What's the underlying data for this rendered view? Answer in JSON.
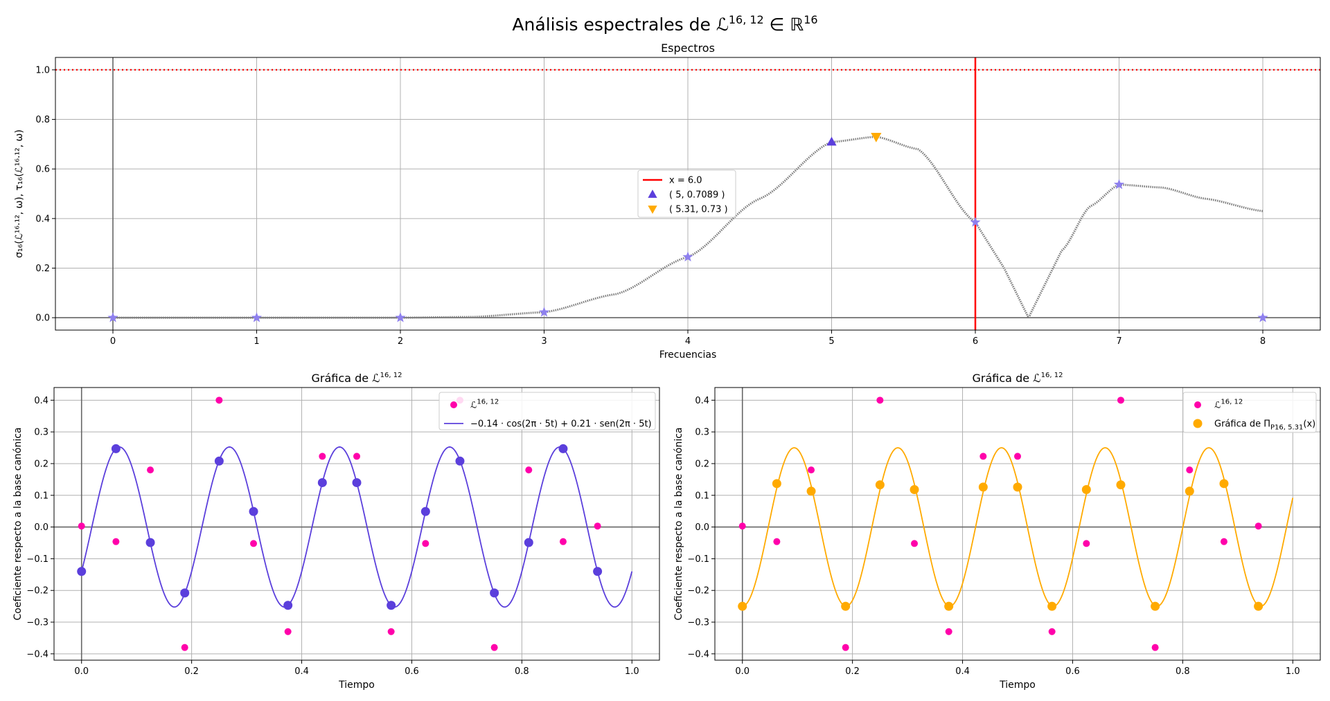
{
  "figure": {
    "title": "Análisis espectrales de ℒ",
    "title_sup": "16, 12",
    "title_mid": " ∈ ℝ",
    "title_sup2": "16"
  },
  "chart_data": [
    {
      "type": "scatter",
      "title": "Espectros",
      "xlabel": "Frecuencias",
      "ylabel": "σ₁₆(ℒ¹⁶·¹², ω), τ₁₆(ℒ¹⁶·¹², ω)",
      "xlim": [
        -0.4,
        8.4
      ],
      "ylim": [
        -0.05,
        1.05
      ],
      "xticks": [
        0,
        1,
        2,
        3,
        4,
        5,
        6,
        7,
        8
      ],
      "xtick_labels": [
        "0",
        "1",
        "2",
        "3",
        "4",
        "5",
        "6",
        "7",
        "8"
      ],
      "yticks": [
        0.0,
        0.2,
        0.4,
        0.6,
        0.8,
        1.0
      ],
      "ytick_labels": [
        "0.0",
        "0.2",
        "0.4",
        "0.6",
        "0.8",
        "1.0"
      ],
      "grid": true,
      "hline_dotted": 1.0,
      "vline_x": 6.0,
      "spectrum_curve": {
        "x": [
          0.0,
          1.0,
          2.0,
          2.5,
          3.0,
          3.5,
          4.0,
          4.5,
          5.0,
          5.31,
          5.6,
          6.0,
          6.2,
          6.37,
          6.6,
          6.8,
          7.0,
          7.3,
          7.6,
          8.0
        ],
        "y": [
          0.0,
          0.0,
          0.0,
          0.003,
          0.022,
          0.095,
          0.245,
          0.48,
          0.709,
          0.73,
          0.68,
          0.385,
          0.2,
          0.0,
          0.27,
          0.45,
          0.537,
          0.525,
          0.48,
          0.43
        ]
      },
      "star_points": {
        "x": [
          0,
          1,
          2,
          3,
          4,
          6,
          7,
          8
        ],
        "y": [
          0.0,
          0.0,
          0.0,
          0.022,
          0.245,
          0.385,
          0.537,
          0.0
        ]
      },
      "triangle_up": {
        "x": 5,
        "y": 0.7089
      },
      "triangle_down": {
        "x": 5.31,
        "y": 0.73
      },
      "legend_position": "center",
      "legend": [
        {
          "label": "x = 6.0",
          "marker": "line",
          "color": "#ff0000"
        },
        {
          "label": "( 5, 0.7089 )",
          "marker": "triangle-up",
          "color": "#5b3fdc"
        },
        {
          "label": "( 5.31, 0.73 )",
          "marker": "triangle-down",
          "color": "#ffaa00"
        }
      ]
    },
    {
      "type": "scatter",
      "title": "Gráfica de ℒ",
      "title_sup": "16, 12",
      "xlabel": "Tiempo",
      "ylabel": "Coeficiente respecto a la base canónica",
      "xlim": [
        -0.05,
        1.05
      ],
      "ylim": [
        -0.42,
        0.44
      ],
      "xticks": [
        0.0,
        0.2,
        0.4,
        0.6,
        0.8,
        1.0
      ],
      "xtick_labels": [
        "0.0",
        "0.2",
        "0.4",
        "0.6",
        "0.8",
        "1.0"
      ],
      "yticks": [
        -0.4,
        -0.3,
        -0.2,
        -0.1,
        0.0,
        0.1,
        0.2,
        0.3,
        0.4
      ],
      "ytick_labels": [
        "−0.4",
        "−0.3",
        "−0.2",
        "−0.1",
        "0.0",
        "0.1",
        "0.2",
        "0.3",
        "0.4"
      ],
      "grid": true,
      "signal_points": {
        "x": [
          0.0,
          0.0625,
          0.125,
          0.1875,
          0.25,
          0.3125,
          0.375,
          0.4375,
          0.5,
          0.5625,
          0.625,
          0.6875,
          0.75,
          0.8125,
          0.875,
          0.9375
        ],
        "y": [
          0.003,
          -0.046,
          0.18,
          -0.38,
          0.4,
          -0.052,
          -0.33,
          0.223,
          0.223,
          -0.33,
          -0.052,
          0.4,
          -0.38,
          0.18,
          -0.046,
          0.003
        ]
      },
      "fit_curve": {
        "a_cos": -0.14,
        "b_sin": 0.21,
        "freq": 5
      },
      "fit_points": {
        "x": [
          0.0,
          0.0625,
          0.125,
          0.1875,
          0.25,
          0.3125,
          0.375,
          0.4375,
          0.5,
          0.5625,
          0.625,
          0.6875,
          0.75,
          0.8125,
          0.875,
          0.9375
        ],
        "y": [
          -0.14,
          0.247,
          -0.049,
          -0.208,
          0.208,
          0.049,
          -0.247,
          0.14,
          0.14,
          -0.247,
          0.049,
          0.208,
          -0.208,
          -0.049,
          0.247,
          -0.14
        ]
      },
      "legend_position": "upper right",
      "legend": [
        {
          "label": "ℒ",
          "label_sup": "16, 12",
          "marker": "dot",
          "color": "#ff00aa"
        },
        {
          "label": "−0.14 · cos(2π · 5t) + 0.21 · sen(2π · 5t)",
          "marker": "line",
          "color": "#5b3fdc"
        }
      ]
    },
    {
      "type": "scatter",
      "title": "Gráfica de ℒ",
      "title_sup": "16, 12",
      "xlabel": "Tiempo",
      "ylabel": "Coeficiente respecto a la base canónica",
      "xlim": [
        -0.05,
        1.05
      ],
      "ylim": [
        -0.42,
        0.44
      ],
      "xticks": [
        0.0,
        0.2,
        0.4,
        0.6,
        0.8,
        1.0
      ],
      "xtick_labels": [
        "0.0",
        "0.2",
        "0.4",
        "0.6",
        "0.8",
        "1.0"
      ],
      "yticks": [
        -0.4,
        -0.3,
        -0.2,
        -0.1,
        0.0,
        0.1,
        0.2,
        0.3,
        0.4
      ],
      "ytick_labels": [
        "−0.4",
        "−0.3",
        "−0.2",
        "−0.1",
        "0.0",
        "0.1",
        "0.2",
        "0.3",
        "0.4"
      ],
      "grid": true,
      "signal_points": {
        "x": [
          0.0,
          0.0625,
          0.125,
          0.1875,
          0.25,
          0.3125,
          0.375,
          0.4375,
          0.5,
          0.5625,
          0.625,
          0.6875,
          0.75,
          0.8125,
          0.875,
          0.9375
        ],
        "y": [
          0.003,
          -0.046,
          0.18,
          -0.38,
          0.4,
          -0.052,
          -0.33,
          0.223,
          0.223,
          -0.33,
          -0.052,
          0.4,
          -0.38,
          0.18,
          -0.046,
          0.003
        ]
      },
      "fit_curve": {
        "amplitude": 0.25,
        "freq": 5.31,
        "phase": -1.5708
      },
      "fit_points": {
        "x": [
          0.0,
          0.0625,
          0.125,
          0.1875,
          0.25,
          0.3125,
          0.375,
          0.4375,
          0.5,
          0.5625,
          0.625,
          0.6875,
          0.75,
          0.8125,
          0.875,
          0.9375
        ],
        "y": [
          -0.25,
          0.137,
          0.113,
          -0.25,
          0.133,
          0.118,
          -0.25,
          0.126,
          0.126,
          -0.25,
          0.118,
          0.133,
          -0.25,
          0.113,
          0.137,
          -0.25
        ]
      },
      "legend_position": "upper right",
      "legend": [
        {
          "label": "ℒ",
          "label_sup": "16, 12",
          "marker": "dot",
          "color": "#ff00aa"
        },
        {
          "label": "Gráfica de Π",
          "label_sub": "P16, 5.31",
          "label_tail": "(x)",
          "marker": "bigdot",
          "color": "#ffaa00"
        }
      ]
    }
  ],
  "colors": {
    "curve": "#7f7f7f",
    "star": "#8e80ee",
    "vline": "#ff0000",
    "hline": "#ff0000",
    "purple": "#5b3fdc",
    "orange": "#ffaa00",
    "magenta": "#ff00aa",
    "grid": "#b0b0b0",
    "axis_zero": "#666666"
  }
}
